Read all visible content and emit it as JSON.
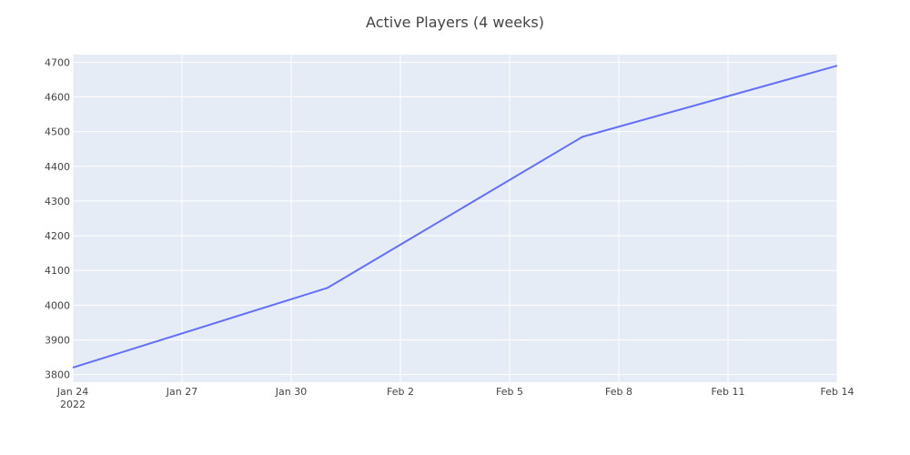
{
  "chart_data": {
    "type": "line",
    "title": "Active Players (4 weeks)",
    "xlabel": "",
    "ylabel": "",
    "xlim": [
      "2022-01-24",
      "2022-02-14"
    ],
    "ylim": [
      3778,
      4722
    ],
    "x_ticks": [
      {
        "date": "2022-01-24",
        "label": "Jan 24",
        "sublabel": "2022"
      },
      {
        "date": "2022-01-27",
        "label": "Jan 27",
        "sublabel": ""
      },
      {
        "date": "2022-01-30",
        "label": "Jan 30",
        "sublabel": ""
      },
      {
        "date": "2022-02-02",
        "label": "Feb 2",
        "sublabel": ""
      },
      {
        "date": "2022-02-05",
        "label": "Feb 5",
        "sublabel": ""
      },
      {
        "date": "2022-02-08",
        "label": "Feb 8",
        "sublabel": ""
      },
      {
        "date": "2022-02-11",
        "label": "Feb 11",
        "sublabel": ""
      },
      {
        "date": "2022-02-14",
        "label": "Feb 14",
        "sublabel": ""
      }
    ],
    "y_ticks": [
      3800,
      3900,
      4000,
      4100,
      4200,
      4300,
      4400,
      4500,
      4600,
      4700
    ],
    "grid": true,
    "legend": "none",
    "colors": {
      "line": "#636efa",
      "plot_background": "#e5ecf6",
      "grid": "#ffffff"
    },
    "series": [
      {
        "x": [
          "2022-01-24",
          "2022-01-31",
          "2022-02-07",
          "2022-02-14"
        ],
        "y": [
          3820,
          4050,
          4485,
          4690
        ]
      }
    ]
  }
}
